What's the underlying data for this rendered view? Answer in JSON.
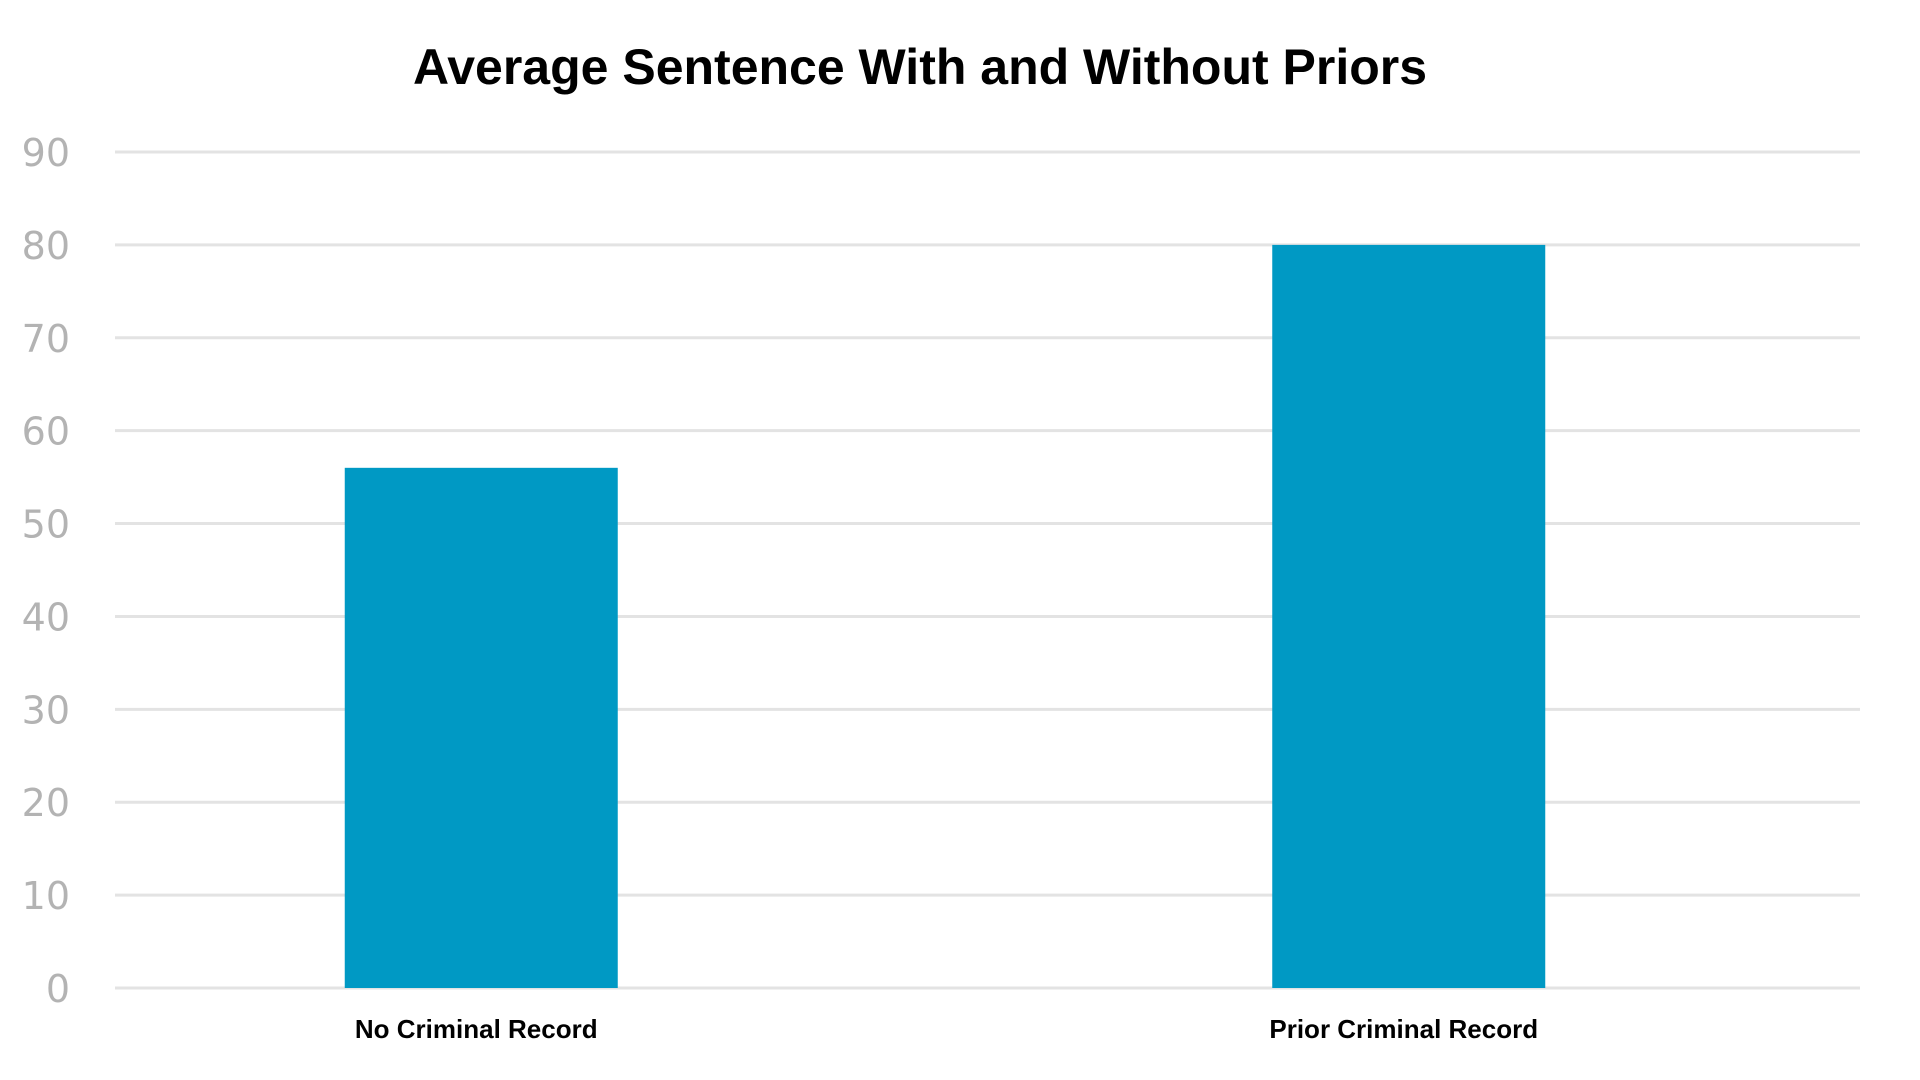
{
  "chart_data": {
    "type": "bar",
    "title": "Average Sentence With and Without Priors",
    "categories": [
      "No Criminal Record",
      "Prior Criminal Record"
    ],
    "values": [
      56,
      80
    ],
    "ylim": [
      0,
      90
    ],
    "yticks": [
      0,
      10,
      20,
      30,
      40,
      50,
      60,
      70,
      80,
      90
    ],
    "grid": true,
    "bar_color": "#0099c4",
    "grid_color": "#e3e3e3",
    "tick_color": "#b3b3b3"
  }
}
